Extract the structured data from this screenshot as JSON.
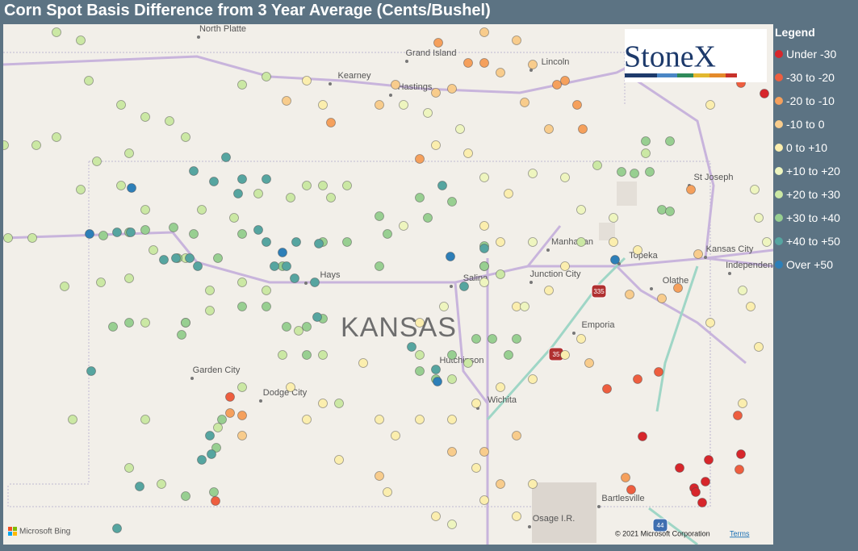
{
  "title": "Corn Spot Basis Difference from 3 Year Average (Cents/Bushel)",
  "legend": {
    "title": "Legend",
    "items": [
      {
        "label": "Under -30",
        "color": "#d7262b"
      },
      {
        "label": "-30 to -20",
        "color": "#ee5e3f"
      },
      {
        "label": "-20 to -10",
        "color": "#f5a05c"
      },
      {
        "label": "-10 to 0",
        "color": "#f8cc8c"
      },
      {
        "label": "0 to +10",
        "color": "#fbeeae"
      },
      {
        "label": "+10 to +20",
        "color": "#eef5bf"
      },
      {
        "label": "+20 to +30",
        "color": "#cbe8a4"
      },
      {
        "label": "+30 to +40",
        "color": "#98cf91"
      },
      {
        "label": "+40 to +50",
        "color": "#56a5a0"
      },
      {
        "label": "Over +50",
        "color": "#2d7fb8"
      }
    ]
  },
  "map": {
    "labels": [
      "North Platte",
      "Grand Island",
      "Kearney",
      "Hastings",
      "Lincoln",
      "St Joseph",
      "Manhattan",
      "Topeka",
      "Kansas City",
      "Independence",
      "Junction City",
      "Salina",
      "Hays",
      "Olathe",
      "Emporia",
      "Garden City",
      "Dodge City",
      "Hutchinson",
      "Wichita",
      "Bartlesville",
      "Osage I.R."
    ],
    "state_label": "KANSAS",
    "highway_shields": [
      "335",
      "35",
      "44"
    ]
  },
  "logo": "StoneX",
  "attribution": {
    "provider": "Microsoft Bing",
    "copyright": "© 2021 Microsoft Corporation",
    "terms": "Terms"
  }
}
